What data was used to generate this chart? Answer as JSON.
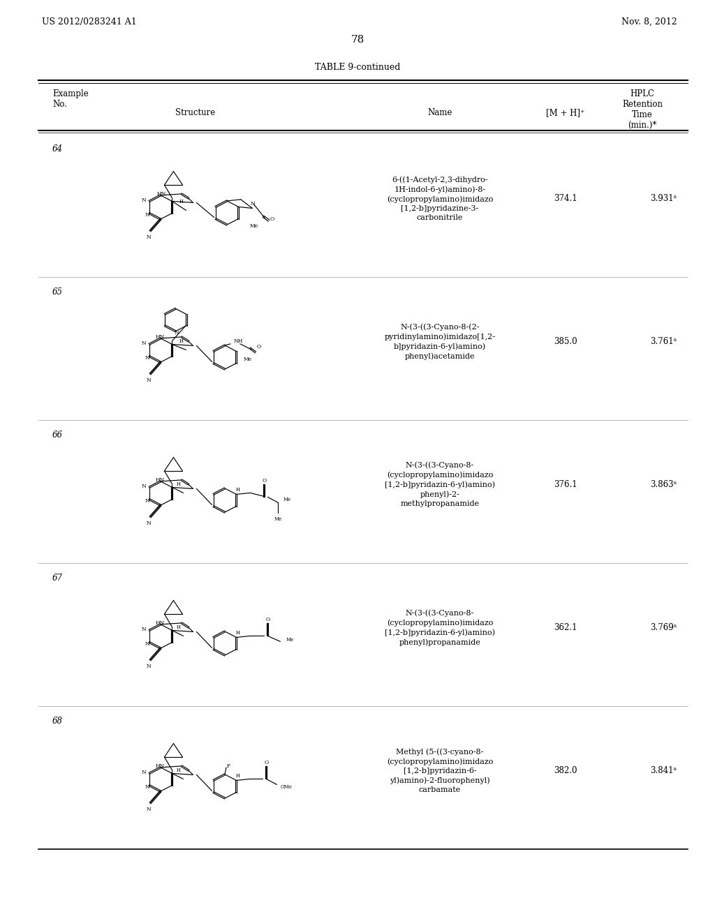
{
  "title_left": "US 2012/0283241 A1",
  "title_right": "Nov. 8, 2012",
  "page_number": "78",
  "table_title": "TABLE 9-continued",
  "col_headers": {
    "example_no": "Example\nNo.",
    "structure": "Structure",
    "name": "Name",
    "mh": "[M + H]⁺",
    "hplc": "HPLC\nRetention\nTime\n(min.)*"
  },
  "rows": [
    {
      "no": "64",
      "name": "6-((1-Acetyl-2,3-dihydro-\n1H-indol-6-yl)amino)-8-\n(cyclopropylamino)imidazo\n[1,2-b]pyridazine-3-\ncarbonitrile",
      "mh": "374.1",
      "hplc": "3.931ᵃ"
    },
    {
      "no": "65",
      "name": "N-(3-((3-Cyano-8-(2-\npyridinylamino)imidazo[1,2-\nb]pyridazin-6-yl)amino)\nphenyl)acetamide",
      "mh": "385.0",
      "hplc": "3.761ᵃ"
    },
    {
      "no": "66",
      "name": "N-(3-((3-Cyano-8-\n(cyclopropylamino)imidazo\n[1,2-b]pyridazin-6-yl)amino)\nphenyl)-2-\nmethylpropanamide",
      "mh": "376.1",
      "hplc": "3.863ᵃ"
    },
    {
      "no": "67",
      "name": "N-(3-((3-Cyano-8-\n(cyclopropylamino)imidazo\n[1,2-b]pyridazin-6-yl)amino)\nphenyl)propanamide",
      "mh": "362.1",
      "hplc": "3.769ᵃ"
    },
    {
      "no": "68",
      "name": "Methyl (5-((3-cyano-8-\n(cyclopropylamino)imidazo\n[1,2-b]pyridazin-6-\nyl)amino)-2-fluorophenyl)\ncarbamate",
      "mh": "382.0",
      "hplc": "3.841ᵃ"
    }
  ],
  "bg_color": "#ffffff",
  "text_color": "#000000",
  "font_size": 8.5,
  "header_font_size": 8.5
}
